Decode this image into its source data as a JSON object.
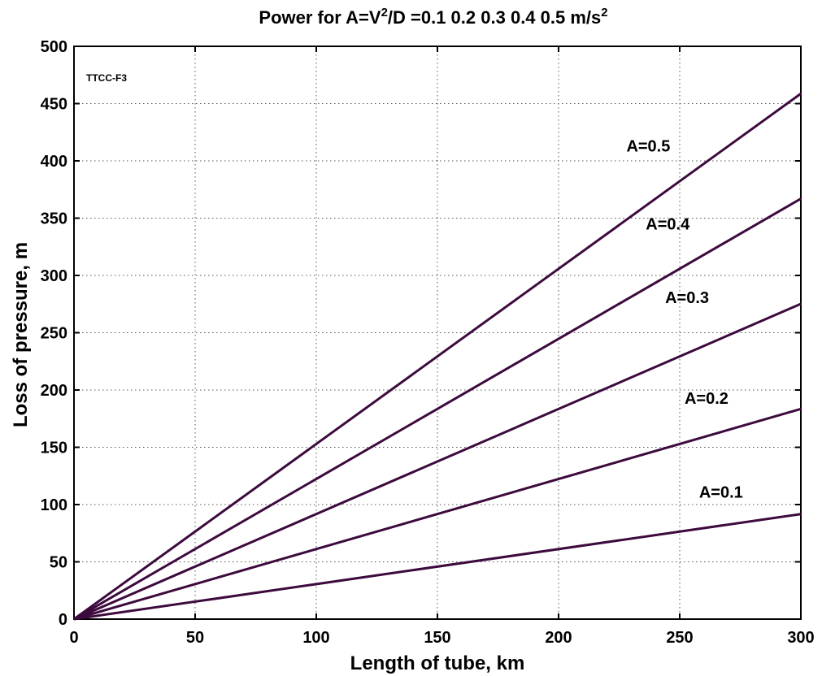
{
  "chart_data": {
    "type": "line",
    "title_prefix": "Power for A=V",
    "title_sup1": "2",
    "title_mid": "/D =0.1  0.2  0.3  0.4  0.5 m/s",
    "title_sup2": "2",
    "xlabel": "Length of tube, km",
    "ylabel": "Loss of pressure, m",
    "xlim": [
      0,
      300
    ],
    "ylim": [
      0,
      500
    ],
    "xticks": [
      0,
      50,
      100,
      150,
      200,
      250,
      300
    ],
    "yticks": [
      0,
      50,
      100,
      150,
      200,
      250,
      300,
      350,
      400,
      450,
      500
    ],
    "grid": true,
    "inset_label": "TTCC-F3",
    "line_color": "#3d0a3d",
    "series": [
      {
        "name": "A=0.1",
        "x": [
          0,
          300
        ],
        "y": [
          0,
          91.7
        ]
      },
      {
        "name": "A=0.2",
        "x": [
          0,
          300
        ],
        "y": [
          0,
          183.5
        ]
      },
      {
        "name": "A=0.3",
        "x": [
          0,
          300
        ],
        "y": [
          0,
          275.2
        ]
      },
      {
        "name": "A=0.4",
        "x": [
          0,
          300
        ],
        "y": [
          0,
          367
        ]
      },
      {
        "name": "A=0.5",
        "x": [
          0,
          300
        ],
        "y": [
          0,
          458.7
        ]
      }
    ],
    "annotations": [
      {
        "text": "A=0.5",
        "x": 228,
        "y": 408
      },
      {
        "text": "A=0.4",
        "x": 236,
        "y": 340
      },
      {
        "text": "A=0.3",
        "x": 244,
        "y": 276
      },
      {
        "text": "A=0.2",
        "x": 252,
        "y": 188
      },
      {
        "text": "A=0.1",
        "x": 258,
        "y": 106
      }
    ]
  }
}
